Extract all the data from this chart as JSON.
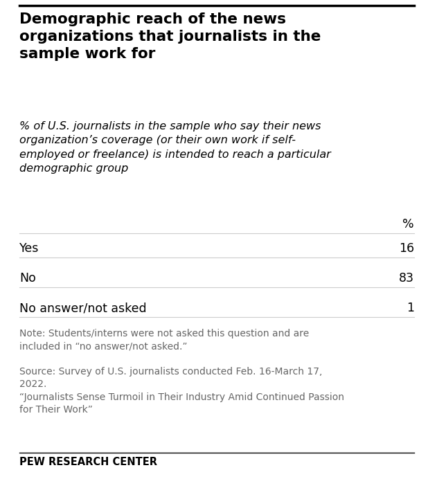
{
  "title": "Demographic reach of the news\norganizations that journalists in the\nsample work for",
  "subtitle": "% of U.S. journalists in the sample who say their news\norganization’s coverage (or their own work if self-\nemployed or freelance) is intended to reach a particular\ndemographic group",
  "col_header": "%",
  "rows": [
    {
      "label": "Yes",
      "value": "16"
    },
    {
      "label": "No",
      "value": "83"
    },
    {
      "label": "No answer/not asked",
      "value": "1"
    }
  ],
  "note": "Note: Students/interns were not asked this question and are\nincluded in “no answer/not asked.”",
  "source": "Source: Survey of U.S. journalists conducted Feb. 16-March 17,\n2022.\n“Journalists Sense Turmoil in Their Industry Amid Continued Passion\nfor Their Work”",
  "footer": "PEW RESEARCH CENTER",
  "bg_color": "#ffffff",
  "text_color": "#000000",
  "note_color": "#666666",
  "line_color": "#cccccc",
  "top_line_color": "#000000",
  "footer_line_color": "#000000",
  "title_fontsize": 15.5,
  "subtitle_fontsize": 11.5,
  "row_fontsize": 12.5,
  "note_fontsize": 10,
  "footer_fontsize": 10.5
}
